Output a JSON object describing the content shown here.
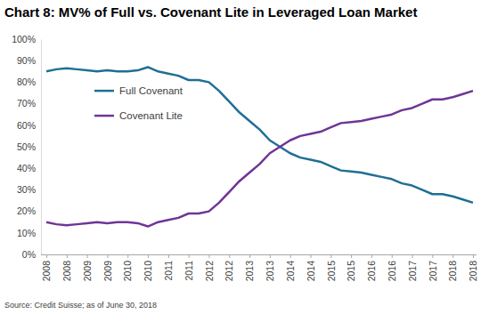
{
  "chart_data": {
    "type": "line",
    "title": "Chart 8: MV% of Full vs. Covenant Lite in Leveraged Loan Market",
    "source": "Source: Credit Suisse; as of June 30, 2018",
    "categories": [
      "2008",
      null,
      "2008",
      null,
      "2009",
      null,
      "2009",
      null,
      "2010",
      null,
      "2010",
      null,
      "2011",
      null,
      "2011",
      null,
      "2012",
      null,
      "2012",
      null,
      "2013",
      null,
      "2013",
      null,
      "2014",
      null,
      "2014",
      null,
      "2015",
      null,
      "2015",
      null,
      "2016",
      null,
      "2016",
      null,
      "2017",
      null,
      "2017",
      null,
      "2018",
      null,
      "2018"
    ],
    "series": [
      {
        "name": "Full Covenant",
        "color": "#1f6f94",
        "values": [
          85,
          86,
          86.5,
          86,
          85.5,
          85,
          85.5,
          85,
          85,
          85.5,
          87,
          85,
          84,
          83,
          81,
          81,
          80,
          76,
          71,
          66,
          62,
          58,
          53,
          50,
          47,
          45,
          44,
          43,
          41,
          39,
          38.5,
          38,
          37,
          36,
          35,
          33,
          32,
          30,
          28,
          28,
          27,
          25.5,
          24
        ]
      },
      {
        "name": "Covenant Lite",
        "color": "#6f3596",
        "values": [
          15,
          14,
          13.5,
          14,
          14.5,
          15,
          14.5,
          15,
          15,
          14.5,
          13,
          15,
          16,
          17,
          19,
          19,
          20,
          24,
          29,
          34,
          38,
          42,
          47,
          50,
          53,
          55,
          56,
          57,
          59,
          61,
          61.5,
          62,
          63,
          64,
          65,
          67,
          68,
          70,
          72,
          72,
          73,
          74.5,
          76
        ]
      }
    ],
    "ylim": [
      0,
      100
    ],
    "yticks": [
      {
        "value": 0,
        "label": "0%"
      },
      {
        "value": 10,
        "label": "10%"
      },
      {
        "value": 20,
        "label": "20%"
      },
      {
        "value": 30,
        "label": "30%"
      },
      {
        "value": 40,
        "label": "40%"
      },
      {
        "value": 50,
        "label": "50%"
      },
      {
        "value": 60,
        "label": "60%"
      },
      {
        "value": 70,
        "label": "70%"
      },
      {
        "value": 80,
        "label": "80%"
      },
      {
        "value": 90,
        "label": "90%"
      },
      {
        "value": 100,
        "label": "100%"
      }
    ],
    "grid": false,
    "legend": "left"
  }
}
